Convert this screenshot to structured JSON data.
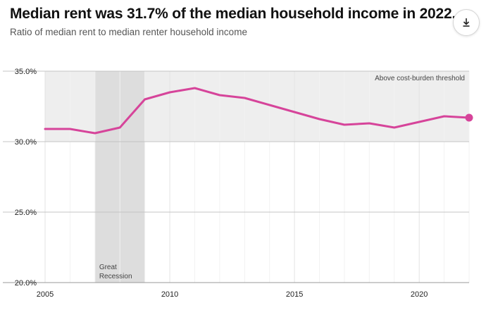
{
  "title": "Median rent was 31.7% of the median household income in 2022.",
  "subtitle": "Ratio of median rent to median renter household income",
  "download_icon": "download-icon",
  "chart_data": {
    "type": "line",
    "x": [
      2005,
      2006,
      2007,
      2008,
      2009,
      2010,
      2011,
      2012,
      2013,
      2014,
      2015,
      2016,
      2017,
      2018,
      2019,
      2020,
      2021,
      2022
    ],
    "series": [
      {
        "name": "Median rent / median renter household income (%)",
        "color": "#d6449a",
        "values": [
          30.9,
          30.9,
          30.6,
          31.0,
          33.0,
          33.5,
          33.8,
          33.3,
          33.1,
          32.6,
          32.1,
          31.6,
          31.2,
          31.3,
          31.0,
          31.4,
          31.8,
          31.7
        ]
      }
    ],
    "xlim": [
      2005,
      2022
    ],
    "ylim": [
      20,
      35
    ],
    "xticks": [
      2005,
      2010,
      2015,
      2020
    ],
    "xtick_labels": [
      "2005",
      "2010",
      "2015",
      "2020"
    ],
    "yticks": [
      20,
      25,
      30,
      35
    ],
    "ytick_labels": [
      "20.0%",
      "25.0%",
      "30.0%",
      "35.0%"
    ],
    "bands": [
      {
        "name": "threshold",
        "y_from": 30,
        "y_to": 35,
        "color": "#eeeeee"
      },
      {
        "name": "recession",
        "x_from": 2007,
        "x_to": 2009,
        "color": "#dddddd"
      }
    ],
    "annotations": {
      "threshold": "Above cost-burden threshold",
      "recession_line1": "Great",
      "recession_line2": "Recession"
    },
    "last_point": {
      "x": 2022,
      "y": 31.7
    }
  }
}
